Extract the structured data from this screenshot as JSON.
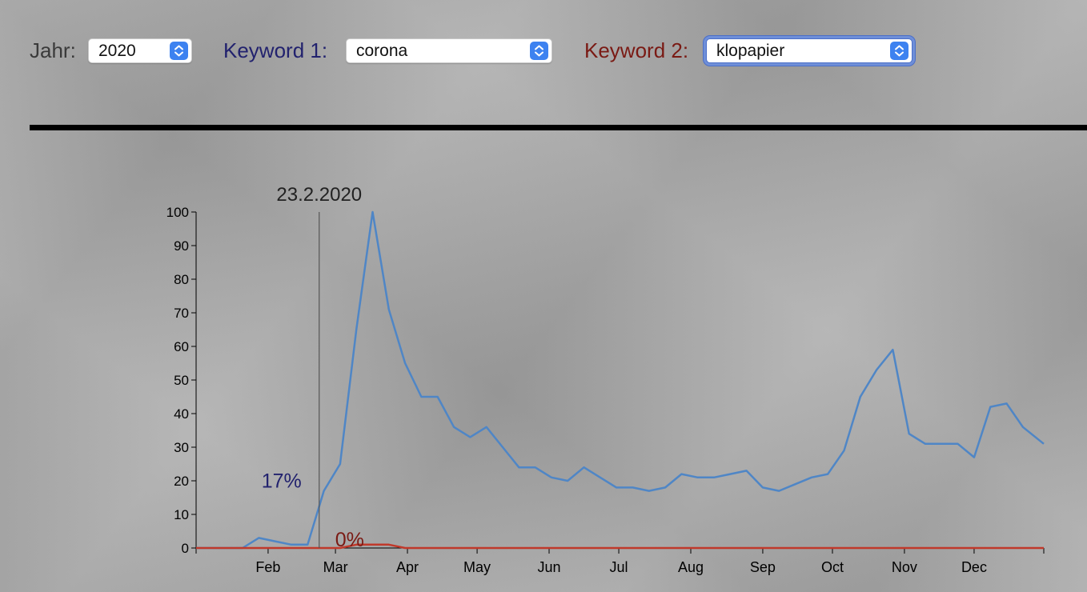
{
  "controls": {
    "year": {
      "label": "Jahr:",
      "value": "2020"
    },
    "keyword1": {
      "label": "Keyword 1:",
      "value": "corona",
      "color": "#22226e"
    },
    "keyword2": {
      "label": "Keyword 2:",
      "value": "klopapier",
      "color": "#7a1a14"
    },
    "label_color": "#3a3a3a",
    "stepper_icon": "up-down-chevron-icon"
  },
  "chart_data": {
    "type": "line",
    "title": "",
    "xlabel": "",
    "ylabel": "",
    "ylim": [
      0,
      100
    ],
    "yticks": [
      0,
      10,
      20,
      30,
      40,
      50,
      60,
      70,
      80,
      90,
      100
    ],
    "xlim": [
      "2020-01-01",
      "2020-12-31"
    ],
    "month_ticks": [
      {
        "label": "Feb",
        "date": "2020-02-01"
      },
      {
        "label": "Mar",
        "date": "2020-03-01"
      },
      {
        "label": "Apr",
        "date": "2020-04-01"
      },
      {
        "label": "May",
        "date": "2020-05-01"
      },
      {
        "label": "Jun",
        "date": "2020-06-01"
      },
      {
        "label": "Jul",
        "date": "2020-07-01"
      },
      {
        "label": "Aug",
        "date": "2020-08-01"
      },
      {
        "label": "Sep",
        "date": "2020-09-01"
      },
      {
        "label": "Oct",
        "date": "2020-10-01"
      },
      {
        "label": "Nov",
        "date": "2020-11-01"
      },
      {
        "label": "Dec",
        "date": "2020-12-01"
      }
    ],
    "x": [
      "2020-01-01",
      "2020-01-07",
      "2020-01-14",
      "2020-01-21",
      "2020-01-28",
      "2020-02-04",
      "2020-02-11",
      "2020-02-18",
      "2020-02-25",
      "2020-03-03",
      "2020-03-10",
      "2020-03-17",
      "2020-03-24",
      "2020-03-31",
      "2020-04-07",
      "2020-04-14",
      "2020-04-21",
      "2020-04-28",
      "2020-05-05",
      "2020-05-12",
      "2020-05-19",
      "2020-05-26",
      "2020-06-02",
      "2020-06-09",
      "2020-06-16",
      "2020-06-23",
      "2020-06-30",
      "2020-07-07",
      "2020-07-14",
      "2020-07-21",
      "2020-07-28",
      "2020-08-04",
      "2020-08-11",
      "2020-08-18",
      "2020-08-25",
      "2020-09-01",
      "2020-09-08",
      "2020-09-15",
      "2020-09-22",
      "2020-09-29",
      "2020-10-06",
      "2020-10-13",
      "2020-10-20",
      "2020-10-27",
      "2020-11-03",
      "2020-11-10",
      "2020-11-17",
      "2020-11-24",
      "2020-12-01",
      "2020-12-08",
      "2020-12-15",
      "2020-12-22",
      "2020-12-31"
    ],
    "series": [
      {
        "name": "corona",
        "color": "#4f86c6",
        "values": [
          0,
          0,
          0,
          0,
          3,
          2,
          1,
          1,
          17,
          25,
          65,
          100,
          71,
          55,
          45,
          45,
          36,
          33,
          36,
          30,
          24,
          24,
          21,
          20,
          24,
          21,
          18,
          18,
          17,
          18,
          22,
          21,
          21,
          22,
          23,
          18,
          17,
          19,
          21,
          22,
          29,
          45,
          53,
          59,
          34,
          31,
          31,
          31,
          27,
          42,
          43,
          36,
          31
        ]
      },
      {
        "name": "klopapier",
        "color": "#c0392b",
        "values": [
          0,
          0,
          0,
          0,
          0,
          0,
          0,
          0,
          0,
          0,
          1,
          1,
          1,
          0,
          0,
          0,
          0,
          0,
          0,
          0,
          0,
          0,
          0,
          0,
          0,
          0,
          0,
          0,
          0,
          0,
          0,
          0,
          0,
          0,
          0,
          0,
          0,
          0,
          0,
          0,
          0,
          0,
          0,
          0,
          0,
          0,
          0,
          0,
          0,
          0,
          0,
          0,
          0
        ]
      }
    ],
    "cursor": {
      "date_label": "23.2.2020",
      "date": "2020-02-23",
      "series1_value_label": "17%",
      "series2_value_label": "0%"
    }
  }
}
